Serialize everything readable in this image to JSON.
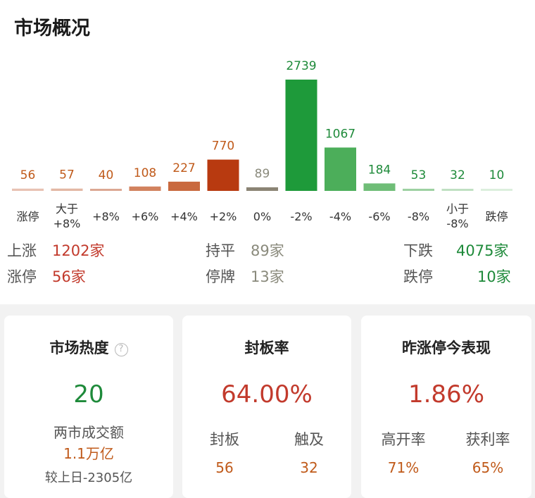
{
  "title": "市场概况",
  "chart_data": {
    "type": "bar",
    "categories": [
      "涨停",
      "大于\n+8%",
      "+8%",
      "+6%",
      "+4%",
      "+2%",
      "0%",
      "-2%",
      "-4%",
      "-6%",
      "-8%",
      "小于\n-8%",
      "跌停"
    ],
    "values": [
      56,
      57,
      40,
      108,
      227,
      770,
      89,
      2739,
      1067,
      184,
      53,
      32,
      10
    ],
    "colors": [
      "#e8c2b3",
      "#e3b7a4",
      "#dca893",
      "#d2825e",
      "#c9693e",
      "#b83a10",
      "#8b8474",
      "#1e9a3a",
      "#4cae5a",
      "#6fbd77",
      "#9dd1a2",
      "#bfe0c2",
      "#dcefdd"
    ],
    "label_colors": [
      "#c05a1a",
      "#c05a1a",
      "#c05a1a",
      "#c05a1a",
      "#c05a1a",
      "#c05a1a",
      "#8a8a7c",
      "#1e8a3a",
      "#1e8a3a",
      "#1e8a3a",
      "#1e8a3a",
      "#1e8a3a",
      "#1e8a3a"
    ]
  },
  "stats": {
    "rise_label": "上涨",
    "rise_value": "1202家",
    "flat_label": "持平",
    "flat_value": "89家",
    "fall_label": "下跌",
    "fall_value": "4075家",
    "limitup_label": "涨停",
    "limitup_value": "56家",
    "suspend_label": "停牌",
    "suspend_value": "13家",
    "limitdown_label": "跌停",
    "limitdown_value": "10家"
  },
  "cards": {
    "heat": {
      "title": "市场热度",
      "help_icon": "?",
      "value": "20",
      "turnover_label": "两市成交额",
      "turnover_value": "1.1万亿",
      "compare": "较上日-2305亿"
    },
    "seal": {
      "title": "封板率",
      "value": "64.00%",
      "left_label": "封板",
      "left_value": "56",
      "right_label": "触及",
      "right_value": "32"
    },
    "yesterday": {
      "title": "昨涨停今表现",
      "value": "1.86%",
      "left_label": "高开率",
      "left_value": "71%",
      "right_label": "获利率",
      "right_value": "65%"
    }
  }
}
